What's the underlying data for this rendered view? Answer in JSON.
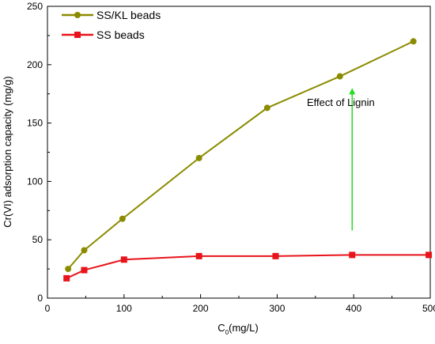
{
  "chart_data": {
    "type": "line",
    "xlabel_main": "C",
    "xlabel_sub": "0",
    "xlabel_unit": "(mg/L)",
    "ylabel": "Cr(VI) adsorption capacity (mg/g)",
    "xlim": [
      0,
      500
    ],
    "ylim": [
      0,
      250
    ],
    "x_ticks": [
      "0",
      "100",
      "200",
      "300",
      "400",
      "500"
    ],
    "y_ticks": [
      "0",
      "50",
      "100",
      "150",
      "200",
      "250"
    ],
    "grid": false,
    "legend_position": "top-left",
    "series": [
      {
        "name": "SS/KL beads",
        "color": "#8B8B00",
        "marker": "circle",
        "x": [
          27,
          48,
          98,
          198,
          287,
          382,
          478
        ],
        "y": [
          25,
          41,
          68,
          120,
          163,
          190,
          220
        ]
      },
      {
        "name": "SS beads",
        "color": "#E8141B",
        "marker": "square",
        "x": [
          25,
          48,
          100,
          198,
          298,
          398,
          498
        ],
        "y": [
          17,
          24,
          33,
          36,
          36,
          37,
          37
        ]
      }
    ],
    "annotation": {
      "text": "Effect of Lignin",
      "arrow_color": "#22DD22",
      "arrow_from": [
        398,
        58
      ],
      "arrow_to": [
        398,
        180
      ]
    }
  }
}
